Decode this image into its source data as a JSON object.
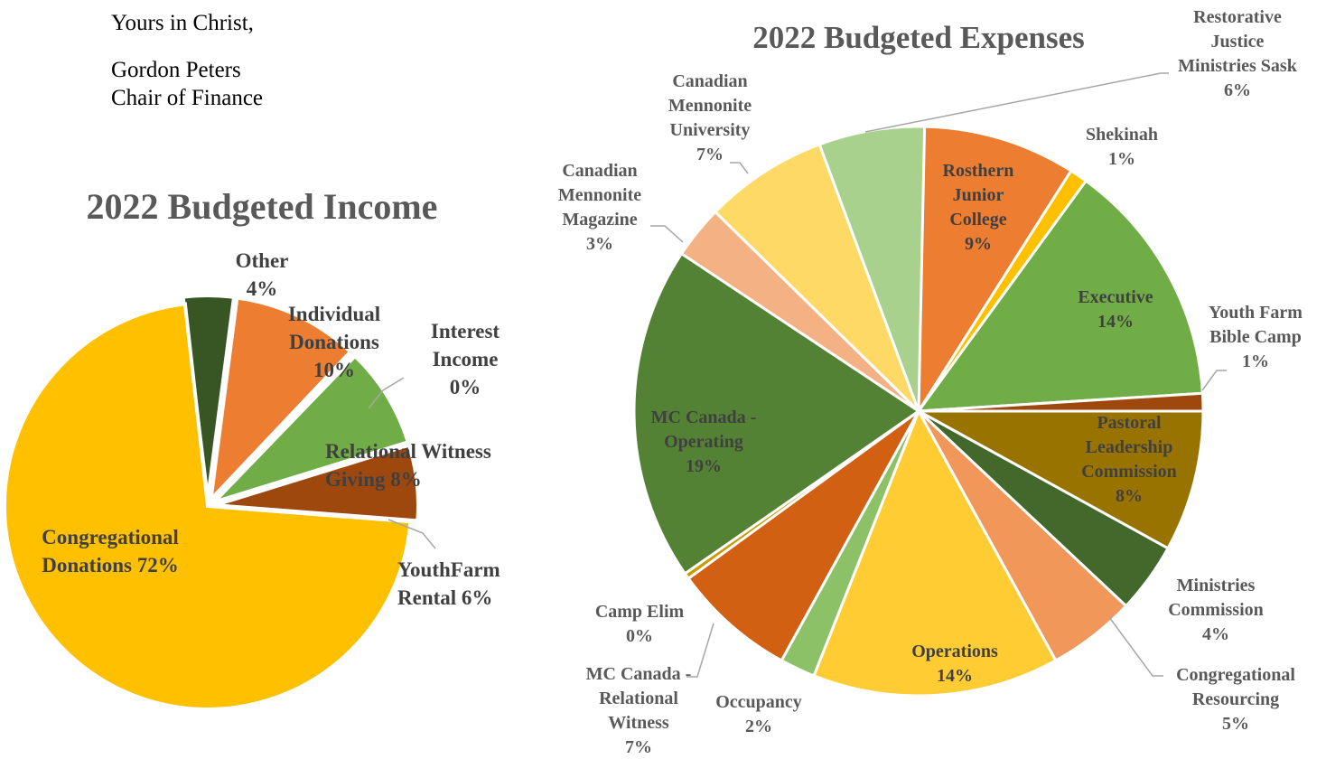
{
  "signature": {
    "closing": "Yours in Christ,",
    "name": "Gordon Peters",
    "role": "Chair of Finance"
  },
  "chart_data": [
    {
      "type": "pie",
      "title": "2022 Budgeted Income",
      "series": [
        {
          "categories": [
            "Other",
            "Individual Donations",
            "Interest Income",
            "Relational Witness Giving",
            "YouthFarm Rental",
            "Congregational Donations"
          ],
          "values": [
            4,
            10,
            0,
            8,
            6,
            72
          ],
          "data_labels": [
            "4%",
            "10%",
            "0%",
            "8%",
            "6%",
            "72%"
          ],
          "colors": [
            "#375623",
            "#ED7D31",
            "#A5A5A5",
            "#70AD47",
            "#9E480E",
            "#FFC000"
          ]
        }
      ],
      "labels": [
        [
          "Other",
          "4%"
        ],
        [
          "Individual",
          "Donations",
          "10%"
        ],
        [
          "Interest",
          "Income",
          "0%"
        ],
        [
          "Relational Witness",
          "Giving 8%"
        ],
        [
          "YouthFarm",
          "Rental 6%"
        ],
        [
          "Congregational",
          "Donations 72%"
        ]
      ],
      "exploded": true,
      "legend": "none"
    },
    {
      "type": "pie",
      "title": "2022 Budgeted Expenses",
      "series": [
        {
          "categories": [
            "Rosthern Junior College",
            "Shekinah",
            "Executive",
            "Youth Farm Bible Camp",
            "Pastoral Leadership Commission",
            "Ministries Commission",
            "Congregational Resourcing",
            "Operations",
            "Occupancy",
            "MC Canada - Relational Witness",
            "Camp Elim",
            "MC Canada - Operating",
            "Canadian Mennonite Magazine",
            "Canadian Mennonite University",
            "Restorative Justice Ministries Sask"
          ],
          "values": [
            9,
            1,
            14,
            1,
            8,
            4,
            5,
            14,
            2,
            7,
            0,
            19,
            3,
            7,
            6
          ],
          "data_labels": [
            "9%",
            "1%",
            "14%",
            "1%",
            "8%",
            "4%",
            "5%",
            "14%",
            "2%",
            "7%",
            "0%",
            "19%",
            "3%",
            "7%",
            "6%"
          ],
          "colors": [
            "#ED7D31",
            "#FFC000",
            "#70AD47",
            "#9E480E",
            "#997300",
            "#43682B",
            "#F1975A",
            "#FFCD33",
            "#8CC168",
            "#D26012",
            "#CC9A00",
            "#548235",
            "#F4B183",
            "#FFD966",
            "#A9D18E"
          ]
        }
      ],
      "labels": [
        [
          "Rosthern",
          "Junior",
          "College",
          "9%"
        ],
        [
          "Shekinah",
          "1%"
        ],
        [
          "Executive",
          "14%"
        ],
        [
          "Youth Farm",
          "Bible Camp",
          "1%"
        ],
        [
          "Pastoral",
          "Leadership",
          "Commission",
          "8%"
        ],
        [
          "Ministries",
          "Commission",
          "4%"
        ],
        [
          "Congregational",
          "Resourcing",
          "5%"
        ],
        [
          "Operations",
          "14%"
        ],
        [
          "Occupancy",
          "2%"
        ],
        [
          "MC Canada -",
          "Relational",
          "Witness",
          "7%"
        ],
        [
          "Camp Elim",
          "0%"
        ],
        [
          "MC Canada -",
          "Operating",
          "19%"
        ],
        [
          "Canadian",
          "Mennonite",
          "Magazine",
          "3%"
        ],
        [
          "Canadian",
          "Mennonite",
          "University",
          "7%"
        ],
        [
          "Restorative",
          "Justice",
          "Ministries Sask",
          "6%"
        ]
      ],
      "legend": "none"
    }
  ]
}
